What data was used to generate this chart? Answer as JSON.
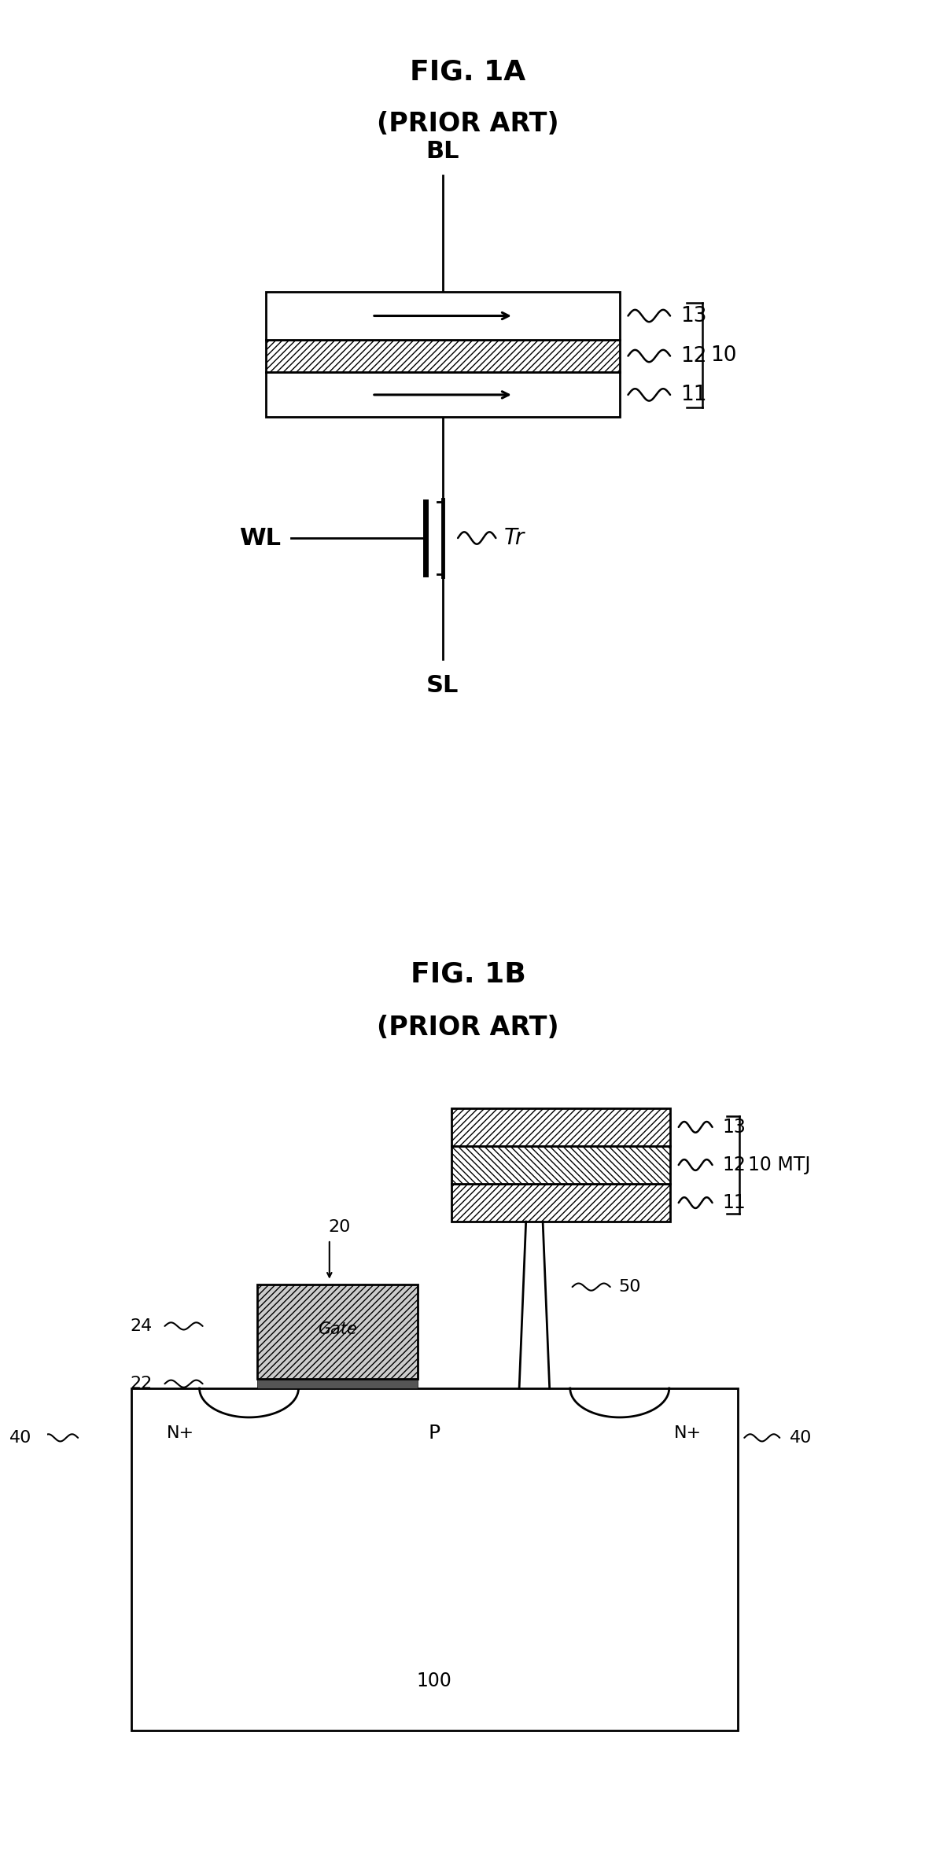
{
  "fig_title_1a": "FIG. 1A",
  "fig_subtitle_1a": "(PRIOR ART)",
  "fig_title_1b": "FIG. 1B",
  "fig_subtitle_1b": "(PRIOR ART)",
  "bg_color": "#ffffff",
  "line_color": "#000000",
  "label_13": "13",
  "label_12": "12",
  "label_11": "11",
  "label_10": "10",
  "label_bl": "BL",
  "label_wl": "WL",
  "label_sl": "SL",
  "label_tr": "Tr",
  "label_20": "20",
  "label_22": "22",
  "label_24": "24",
  "label_40a": "40",
  "label_40b": "40",
  "label_50": "50",
  "label_100": "100",
  "label_np": "N+",
  "label_p": "P",
  "label_nn": "N+",
  "label_gate": "Gate",
  "label_mtj": "10 MTJ"
}
